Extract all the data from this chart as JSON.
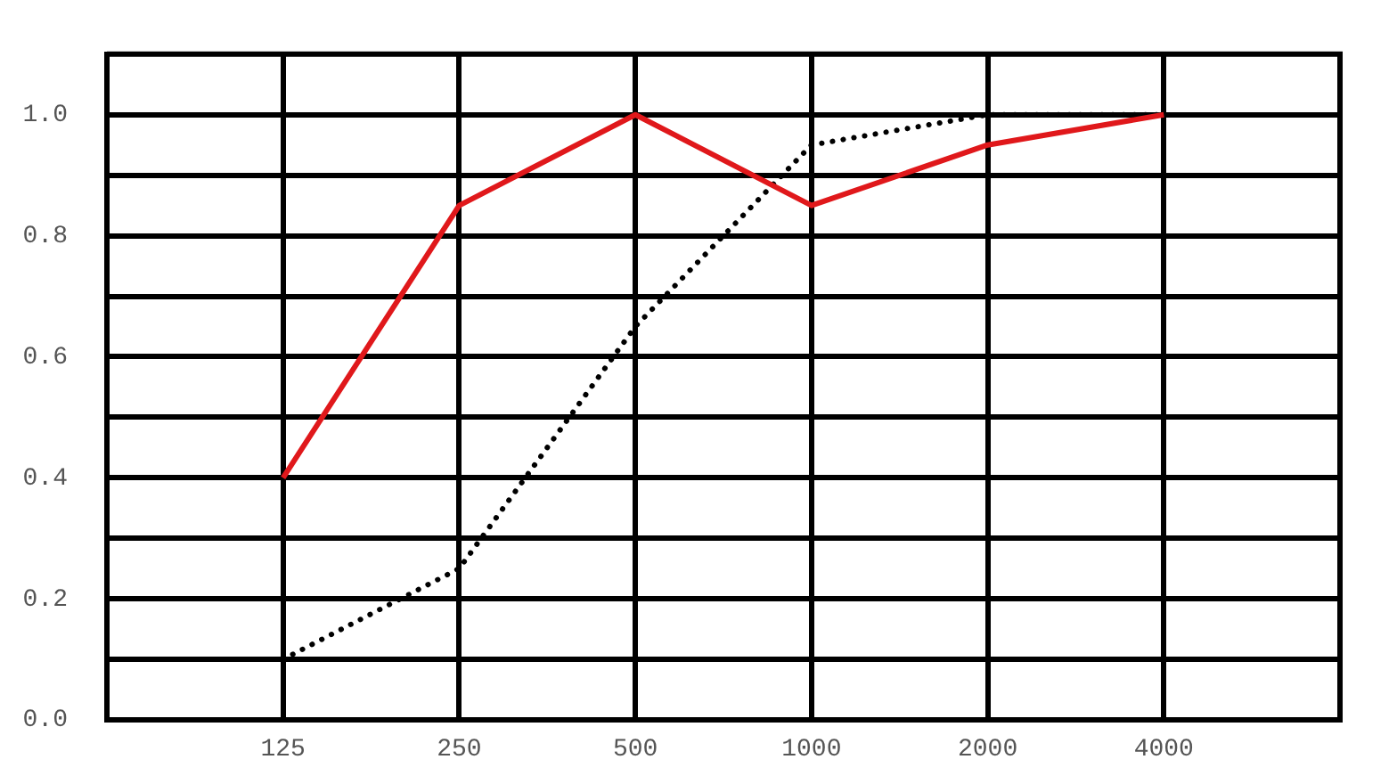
{
  "chart_data": {
    "type": "line",
    "x": [
      125,
      250,
      500,
      1000,
      2000,
      4000
    ],
    "series": [
      {
        "color": "#e0181b",
        "values": [
          0.4,
          0.85,
          1.0,
          0.85,
          0.95,
          1.0
        ],
        "line_style": "solid"
      },
      {
        "color": "#000000",
        "values": [
          0.1,
          0.25,
          0.65,
          0.95,
          1.0,
          1.0
        ],
        "line_style": "dotted"
      }
    ],
    "log": "x",
    "xlim": [
      62.5,
      8000
    ],
    "xticks": [
      125,
      250,
      500,
      1000,
      2000,
      4000
    ],
    "ylim": [
      0,
      1.1
    ],
    "yticks": [
      {
        "value": 0,
        "label": "0.0"
      },
      {
        "value": 0.1,
        "label": null
      },
      0.2,
      {
        "value": 0.3,
        "label": null
      },
      0.4,
      {
        "value": 0.5,
        "label": null
      },
      0.6,
      {
        "value": 0.7,
        "label": null
      },
      0.8,
      {
        "value": 0.9,
        "label": null
      },
      {
        "value": 1.0,
        "label": "1.0"
      }
    ],
    "grid": true,
    "marker": "none"
  }
}
